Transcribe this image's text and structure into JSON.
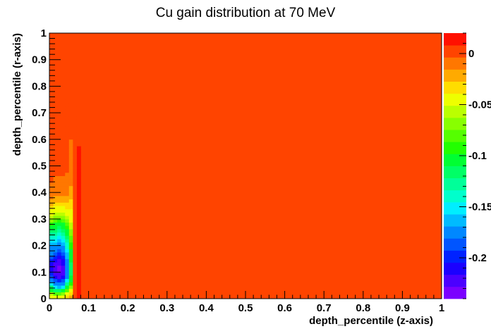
{
  "chart_data": {
    "type": "heatmap",
    "title": "Cu gain distribution at 70 MeV",
    "xlabel": "depth_percentile (z-axis)",
    "ylabel": "depth_percentile (r-axis)",
    "xlim": [
      0,
      1
    ],
    "ylim": [
      0,
      1
    ],
    "x_ticks": [
      "0",
      "0.1",
      "0.2",
      "0.3",
      "0.4",
      "0.5",
      "0.6",
      "0.7",
      "0.8",
      "0.9",
      "1"
    ],
    "y_ticks": [
      "0",
      "0.1",
      "0.2",
      "0.3",
      "0.4",
      "0.5",
      "0.6",
      "0.7",
      "0.8",
      "0.9",
      "1"
    ],
    "z_range": [
      -0.24,
      0.02
    ],
    "colorbar_ticks": [
      "0",
      "-0.05",
      "-0.1",
      "-0.15",
      "-0.2"
    ],
    "colorbar_tick_values": [
      0,
      -0.05,
      -0.1,
      -0.15,
      -0.2
    ],
    "palette": [
      "#7b00ff",
      "#4b00ff",
      "#1b00ff",
      "#0022ff",
      "#0055ff",
      "#0088ff",
      "#00bbff",
      "#00eeff",
      "#00ffcc",
      "#00ff99",
      "#00ff66",
      "#00ff33",
      "#22ff00",
      "#55ff00",
      "#88ff00",
      "#bbff00",
      "#eeff00",
      "#ffdd00",
      "#ffaa00",
      "#ff7700",
      "#ff4400",
      "#ff1100"
    ],
    "grid": false,
    "background_value": 0,
    "bins": {
      "z_edges": [
        0.0,
        0.01,
        0.02,
        0.03,
        0.04,
        0.05,
        0.06,
        0.07,
        0.08
      ],
      "r_bin_width": 0.0125,
      "columns": [
        {
          "z_range": [
            0.0,
            0.01
          ],
          "values": [
            -0.04,
            -0.06,
            -0.1,
            -0.12,
            -0.15,
            -0.17,
            -0.19,
            -0.2,
            -0.21,
            -0.21,
            -0.21,
            -0.2,
            -0.19,
            -0.18,
            -0.18,
            -0.17,
            -0.16,
            -0.15,
            -0.14,
            -0.13,
            -0.12,
            -0.1,
            -0.09,
            -0.07,
            -0.06,
            -0.05,
            -0.04,
            -0.03,
            -0.02,
            -0.02,
            -0.01,
            -0.01,
            -0.01,
            -0.01,
            -0.01,
            0.0,
            0.0,
            0.0,
            0.0,
            0.0,
            0.0,
            0.0,
            0.0,
            0.0,
            0.0,
            0.0,
            0.0,
            0.0,
            0.0,
            0.0,
            0.0,
            0.0,
            0.0,
            0.0,
            0.0,
            0.0,
            0.0,
            0.0,
            0.0,
            0.0
          ]
        },
        {
          "z_range": [
            0.01,
            0.02
          ],
          "values": [
            -0.05,
            -0.08,
            -0.12,
            -0.15,
            -0.17,
            -0.19,
            -0.21,
            -0.22,
            -0.22,
            -0.22,
            -0.22,
            -0.21,
            -0.2,
            -0.19,
            -0.18,
            -0.17,
            -0.16,
            -0.15,
            -0.14,
            -0.13,
            -0.12,
            -0.11,
            -0.1,
            -0.08,
            -0.07,
            -0.06,
            -0.05,
            -0.04,
            -0.03,
            -0.02,
            -0.02,
            -0.01,
            -0.01,
            -0.01,
            -0.01,
            -0.01,
            -0.01,
            0.0,
            0.0,
            0.0,
            0.0,
            0.0,
            0.0,
            0.0,
            0.0,
            0.0,
            0.0,
            0.0,
            0.0,
            0.0,
            0.0,
            0.0,
            0.0,
            0.0,
            0.0,
            0.0,
            0.0,
            0.0,
            0.0,
            0.0
          ]
        },
        {
          "z_range": [
            0.02,
            0.03
          ],
          "values": [
            -0.05,
            -0.08,
            -0.12,
            -0.16,
            -0.18,
            -0.2,
            -0.22,
            -0.22,
            -0.23,
            -0.23,
            -0.22,
            -0.22,
            -0.21,
            -0.2,
            -0.19,
            -0.18,
            -0.17,
            -0.16,
            -0.15,
            -0.14,
            -0.13,
            -0.12,
            -0.1,
            -0.09,
            -0.07,
            -0.06,
            -0.05,
            -0.04,
            -0.03,
            -0.02,
            -0.02,
            -0.01,
            -0.01,
            -0.01,
            -0.01,
            -0.01,
            -0.01,
            0.0,
            0.0,
            0.0,
            0.0,
            0.0,
            0.0,
            0.0,
            0.0,
            0.0,
            0.0,
            0.0,
            0.0,
            0.0,
            0.0,
            0.0,
            0.0,
            0.0,
            0.0,
            0.0,
            0.0,
            0.0,
            0.0,
            0.0
          ]
        },
        {
          "z_range": [
            0.03,
            0.04
          ],
          "values": [
            -0.04,
            -0.07,
            -0.11,
            -0.15,
            -0.17,
            -0.19,
            -0.21,
            -0.22,
            -0.22,
            -0.22,
            -0.21,
            -0.21,
            -0.2,
            -0.19,
            -0.18,
            -0.17,
            -0.16,
            -0.15,
            -0.14,
            -0.13,
            -0.12,
            -0.11,
            -0.1,
            -0.08,
            -0.07,
            -0.06,
            -0.05,
            -0.04,
            -0.03,
            -0.02,
            -0.02,
            -0.01,
            -0.01,
            -0.01,
            -0.01,
            -0.01,
            -0.01,
            0.0,
            0.0,
            0.0,
            0.0,
            0.0,
            0.0,
            0.0,
            0.0,
            0.0,
            0.0,
            0.0,
            0.0,
            0.0,
            0.0,
            0.0,
            0.0,
            0.0,
            0.0,
            0.0,
            0.0,
            0.0,
            0.0,
            0.0
          ]
        },
        {
          "z_range": [
            0.04,
            0.05
          ],
          "values": [
            -0.03,
            -0.05,
            -0.08,
            -0.11,
            -0.13,
            -0.15,
            -0.17,
            -0.18,
            -0.18,
            -0.18,
            -0.18,
            -0.17,
            -0.16,
            -0.16,
            -0.15,
            -0.14,
            -0.14,
            -0.13,
            -0.12,
            -0.11,
            -0.1,
            -0.09,
            -0.08,
            -0.07,
            -0.06,
            -0.05,
            -0.04,
            -0.03,
            -0.03,
            -0.02,
            -0.02,
            -0.01,
            -0.01,
            -0.01,
            -0.01,
            -0.01,
            -0.01,
            -0.01,
            0.0,
            0.0,
            0.0,
            0.0,
            0.0,
            0.0,
            0.0,
            0.0,
            0.0,
            0.0,
            0.0,
            0.0,
            0.0,
            0.0,
            0.0,
            0.0,
            0.0,
            0.0,
            0.0,
            0.0,
            0.0,
            0.0
          ]
        },
        {
          "z_range": [
            0.05,
            0.06
          ],
          "values": [
            -0.02,
            -0.03,
            -0.05,
            -0.07,
            -0.09,
            -0.1,
            -0.11,
            -0.12,
            -0.12,
            -0.12,
            -0.12,
            -0.11,
            -0.11,
            -0.1,
            -0.1,
            -0.09,
            -0.09,
            -0.08,
            -0.08,
            -0.07,
            -0.07,
            -0.06,
            -0.06,
            -0.05,
            -0.05,
            -0.04,
            -0.04,
            -0.03,
            -0.03,
            -0.03,
            -0.02,
            -0.02,
            -0.02,
            -0.02,
            -0.01,
            -0.01,
            -0.01,
            -0.01,
            -0.01,
            -0.01,
            -0.01,
            -0.01,
            -0.01,
            -0.01,
            -0.01,
            -0.01,
            -0.01,
            -0.01,
            0.0,
            0.0,
            0.0,
            0.0,
            0.0,
            0.0,
            0.0,
            0.0,
            0.0,
            0.0,
            0.0,
            0.0
          ]
        },
        {
          "z_range": [
            0.06,
            0.07
          ],
          "values": [
            0.0,
            0.0,
            0.0,
            0.0,
            0.0,
            0.0,
            0.0,
            0.0,
            0.0,
            0.0,
            0.0,
            0.0,
            0.0,
            0.0,
            0.0,
            0.0,
            0.0,
            0.0,
            0.0,
            0.0,
            0.0,
            0.0,
            0.0,
            0.0,
            0.0,
            0.0,
            0.0,
            0.0,
            0.0,
            0.0,
            0.0,
            0.0,
            0.0,
            0.0,
            0.0,
            0.0,
            0.0,
            0.0,
            0.0,
            0.0,
            0.0,
            0.0,
            0.0,
            0.0,
            0.0,
            0.0,
            0.0,
            0.0,
            0.0,
            0.0,
            0.0,
            0.0,
            0.0,
            0.0,
            0.0,
            0.0,
            0.0,
            0.0,
            0.0,
            0.0
          ]
        },
        {
          "z_range": [
            0.07,
            0.08
          ],
          "values": [
            0.012,
            0.012,
            0.012,
            0.012,
            0.012,
            0.012,
            0.012,
            0.012,
            0.012,
            0.012,
            0.012,
            0.012,
            0.012,
            0.012,
            0.012,
            0.012,
            0.012,
            0.012,
            0.012,
            0.012,
            0.012,
            0.012,
            0.012,
            0.012,
            0.012,
            0.012,
            0.012,
            0.012,
            0.012,
            0.012,
            0.012,
            0.012,
            0.012,
            0.012,
            0.012,
            0.012,
            0.012,
            0.012,
            0.012,
            0.012,
            0.012,
            0.012,
            0.012,
            0.012,
            0.012,
            0.012,
            0.0,
            0.0,
            0.0,
            0.0,
            0.0,
            0.0,
            0.0,
            0.0,
            0.0,
            0.0,
            0.0,
            0.0,
            0.0,
            0.0
          ]
        }
      ]
    }
  }
}
